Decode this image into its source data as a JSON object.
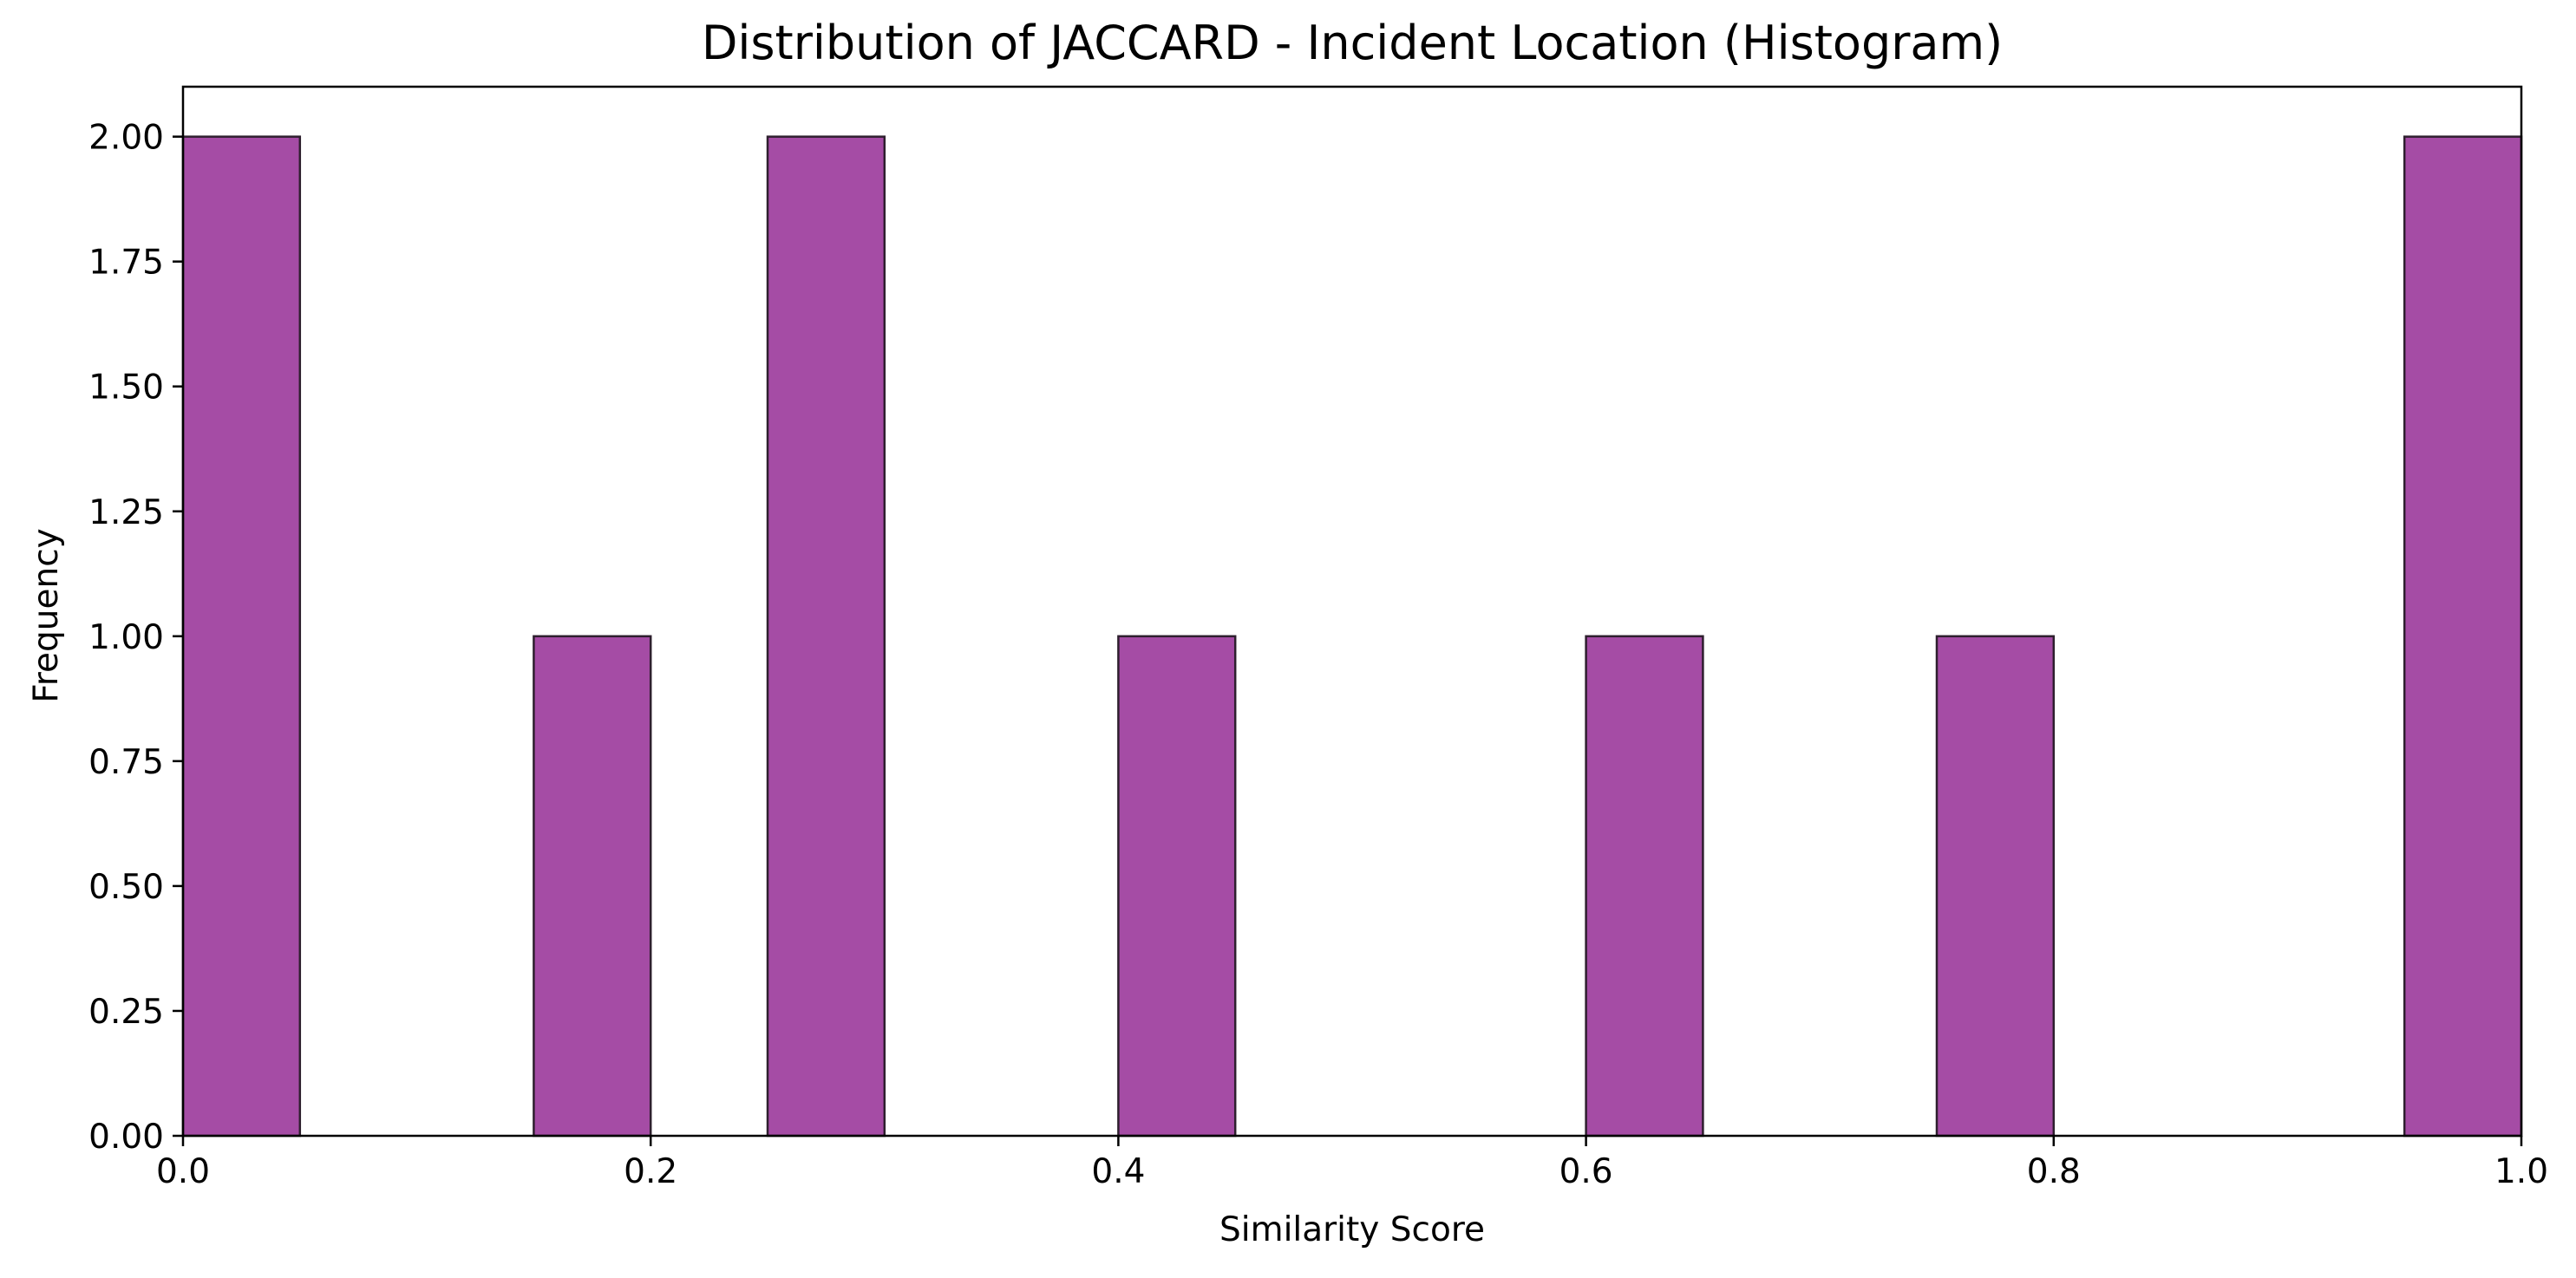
{
  "chart_data": {
    "type": "bar",
    "title": "Distribution of JACCARD - Incident Location (Histogram)",
    "xlabel": "Similarity Score",
    "ylabel": "Frequency",
    "xlim": [
      0.0,
      1.0
    ],
    "ylim": [
      0.0,
      2.1
    ],
    "bin_width": 0.05,
    "bins": [
      {
        "x0": 0.0,
        "x1": 0.05,
        "count": 2
      },
      {
        "x0": 0.15,
        "x1": 0.2,
        "count": 1
      },
      {
        "x0": 0.25,
        "x1": 0.3,
        "count": 2
      },
      {
        "x0": 0.4,
        "x1": 0.45,
        "count": 1
      },
      {
        "x0": 0.6,
        "x1": 0.65,
        "count": 1
      },
      {
        "x0": 0.75,
        "x1": 0.8,
        "count": 1
      },
      {
        "x0": 0.95,
        "x1": 1.0,
        "count": 2
      }
    ],
    "xticks": [
      {
        "value": 0.0,
        "label": "0.0"
      },
      {
        "value": 0.2,
        "label": "0.2"
      },
      {
        "value": 0.4,
        "label": "0.4"
      },
      {
        "value": 0.6,
        "label": "0.6"
      },
      {
        "value": 0.8,
        "label": "0.8"
      },
      {
        "value": 1.0,
        "label": "1.0"
      }
    ],
    "yticks": [
      {
        "value": 0.0,
        "label": "0.00"
      },
      {
        "value": 0.25,
        "label": "0.25"
      },
      {
        "value": 0.5,
        "label": "0.50"
      },
      {
        "value": 0.75,
        "label": "0.75"
      },
      {
        "value": 1.0,
        "label": "1.00"
      },
      {
        "value": 1.25,
        "label": "1.25"
      },
      {
        "value": 1.5,
        "label": "1.50"
      },
      {
        "value": 1.75,
        "label": "1.75"
      },
      {
        "value": 2.0,
        "label": "2.00"
      }
    ],
    "grid": false,
    "colors": {
      "bar_fill": "#a54ca5",
      "bar_edge": "#2e1f2e",
      "axis": "#000000"
    }
  }
}
